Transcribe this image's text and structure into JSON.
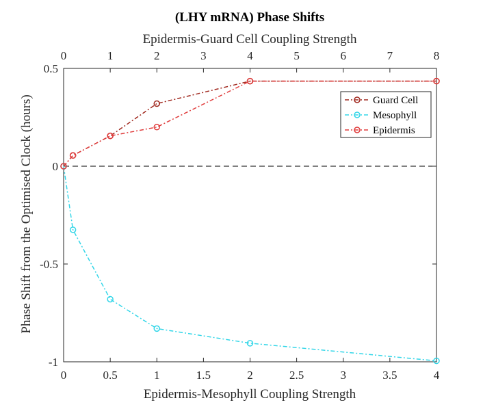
{
  "chart_data": {
    "type": "line",
    "title": "(LHY mRNA) Phase Shifts",
    "xlabel": "Epidermis-Mesophyll Coupling Strength",
    "x2label": "Epidermis-Guard Cell Coupling Strength",
    "ylabel": "Phase Shift from the Optimised Clock (hours)",
    "xlim": [
      0,
      4
    ],
    "ylim": [
      -1,
      0.5
    ],
    "xticks": [
      0,
      0.5,
      1,
      1.5,
      2,
      2.5,
      3,
      3.5,
      4
    ],
    "xtick_labels": [
      "0",
      "0.5",
      "1",
      "1.5",
      "2",
      "2.5",
      "3",
      "3.5",
      "4"
    ],
    "x2ticks": [
      0,
      1,
      2,
      3,
      4,
      5,
      6,
      7,
      8
    ],
    "x2tick_labels": [
      "0",
      "1",
      "2",
      "3",
      "4",
      "5",
      "6",
      "7",
      "8"
    ],
    "yticks": [
      -1,
      -0.5,
      0,
      0.5
    ],
    "ytick_labels": [
      "-1",
      "-0.5",
      "0",
      "0.5"
    ],
    "reference_line": {
      "y": 0,
      "style": "dashed",
      "color": "#000000"
    },
    "legend_position": "top-right",
    "series": [
      {
        "name": "Guard Cell",
        "axis": "top",
        "color": "#a0281e",
        "x": [
          0,
          0.2,
          1,
          2,
          4,
          8
        ],
        "values": [
          0,
          0.055,
          0.155,
          0.32,
          0.435,
          0.435
        ]
      },
      {
        "name": "Mesophyll",
        "axis": "bottom",
        "color": "#33d6e8",
        "x": [
          0,
          0.1,
          0.5,
          1,
          2,
          4
        ],
        "values": [
          0,
          -0.325,
          -0.68,
          -0.83,
          -0.905,
          -0.995
        ]
      },
      {
        "name": "Epidermis",
        "axis": "bottom",
        "color": "#e03c3c",
        "x": [
          0,
          0.1,
          0.5,
          1,
          2,
          4
        ],
        "values": [
          0,
          0.055,
          0.155,
          0.2,
          0.435,
          0.435
        ]
      }
    ]
  }
}
